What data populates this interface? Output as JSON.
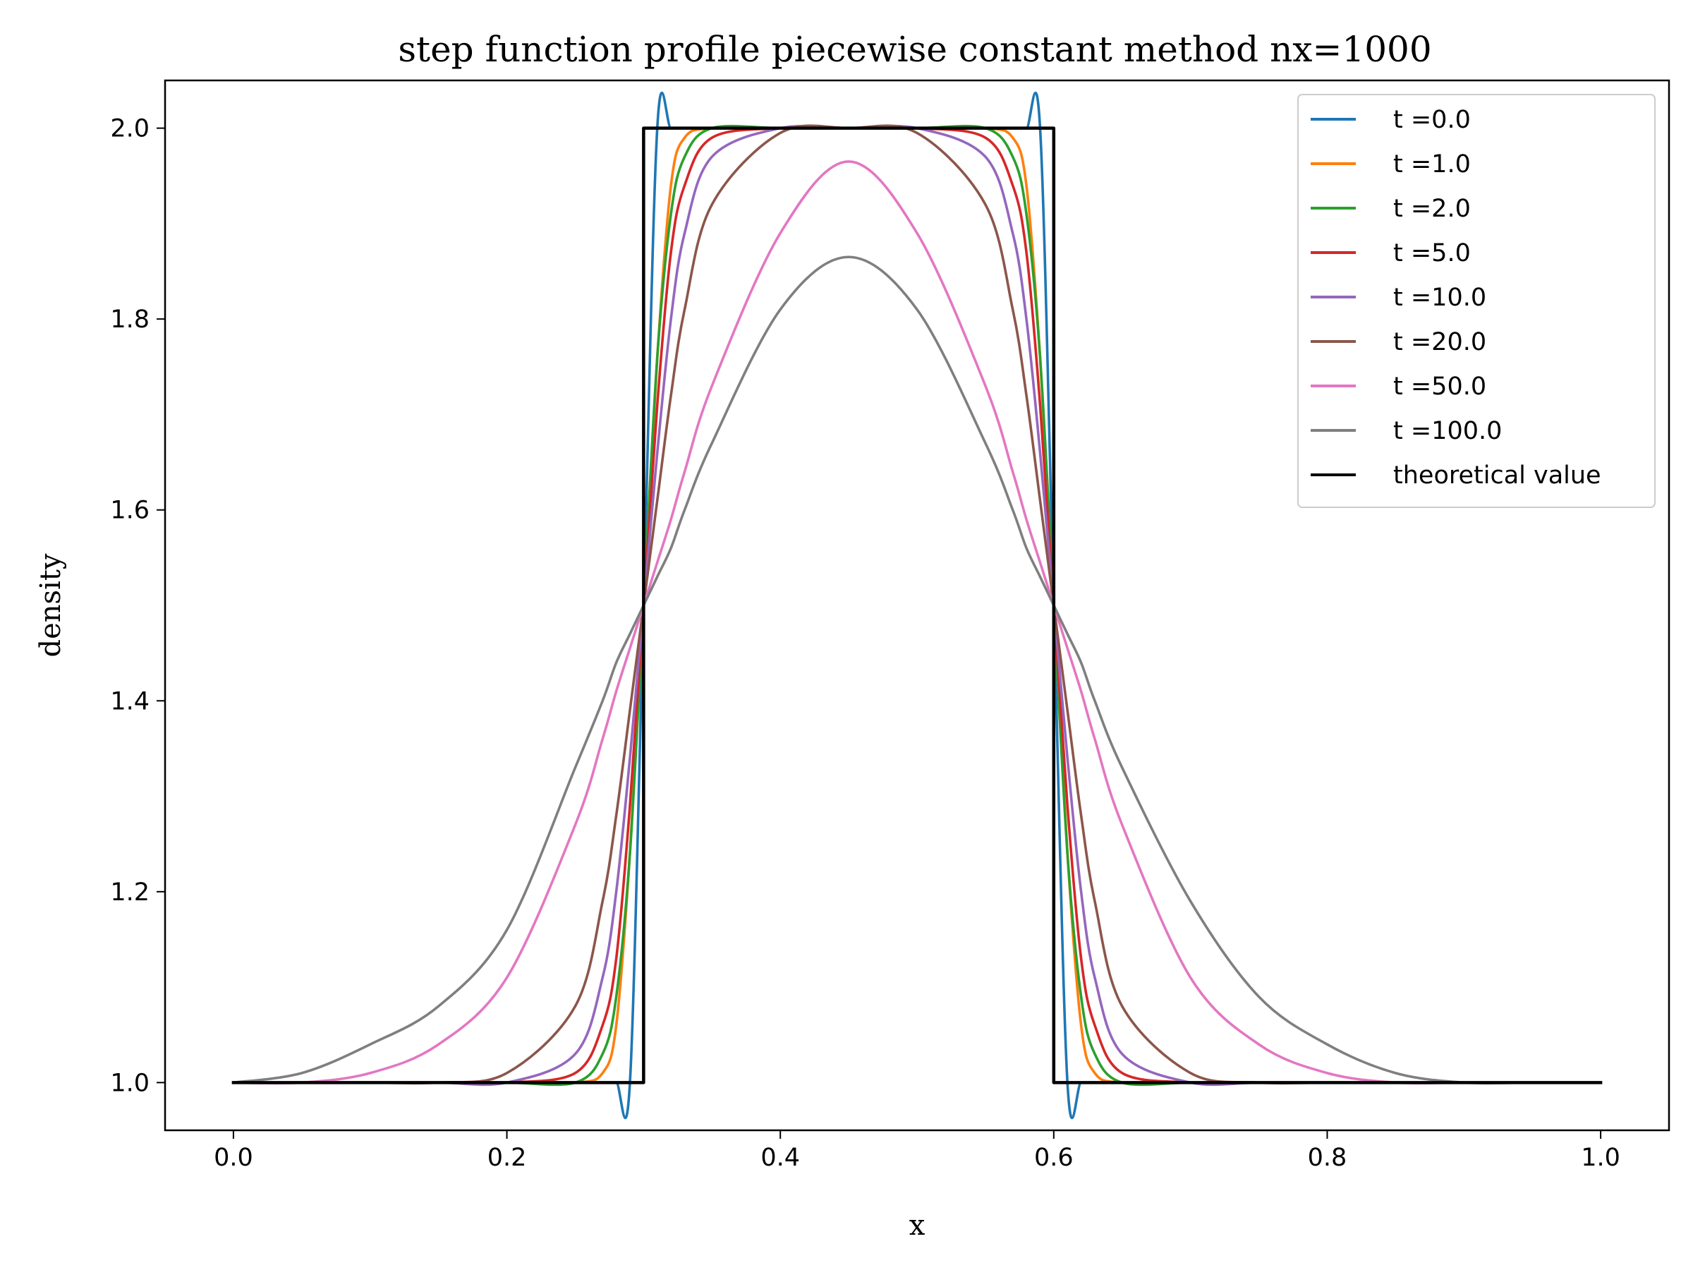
{
  "chart_data": {
    "type": "line",
    "title": "step function profile piecewise constant method nx=1000",
    "xlabel": "x",
    "ylabel": "density",
    "xlim": [
      -0.05,
      1.05
    ],
    "ylim": [
      0.95,
      2.05
    ],
    "xticks": [
      0.0,
      0.2,
      0.4,
      0.6,
      0.8,
      1.0
    ],
    "xtick_labels": [
      "0.0",
      "0.2",
      "0.4",
      "0.6",
      "0.8",
      "1.0"
    ],
    "yticks": [
      1.0,
      1.2,
      1.4,
      1.6,
      1.8,
      2.0
    ],
    "ytick_labels": [
      "1.0",
      "1.2",
      "1.4",
      "1.6",
      "1.8",
      "2.0"
    ],
    "grid": false,
    "legend_position": "top-right",
    "x": [
      0.0,
      0.05,
      0.1,
      0.15,
      0.2,
      0.25,
      0.27,
      0.28,
      0.29,
      0.3,
      0.31,
      0.32,
      0.33,
      0.35,
      0.4,
      0.45,
      0.5,
      0.55,
      0.57,
      0.58,
      0.59,
      0.6,
      0.61,
      0.62,
      0.63,
      0.65,
      0.7,
      0.75,
      0.8,
      0.85,
      0.9,
      0.95,
      1.0
    ],
    "series": [
      {
        "name": "t =0.0",
        "color": "#1f77b4",
        "values": [
          1.0,
          1.0,
          1.0,
          1.0,
          1.0,
          1.0,
          1.0,
          1.0,
          1.0,
          1.5,
          2.0,
          2.0,
          2.0,
          2.0,
          2.0,
          2.0,
          2.0,
          2.0,
          2.0,
          2.0,
          2.0,
          1.5,
          1.0,
          1.0,
          1.0,
          1.0,
          1.0,
          1.0,
          1.0,
          1.0,
          1.0,
          1.0,
          1.0
        ]
      },
      {
        "name": "t =1.0",
        "color": "#ff7f0e",
        "values": [
          1.0,
          1.0,
          1.0,
          1.0,
          1.0,
          1.0,
          1.01,
          1.06,
          1.24,
          1.5,
          1.76,
          1.94,
          1.99,
          2.0,
          2.0,
          2.0,
          2.0,
          2.0,
          1.99,
          1.94,
          1.76,
          1.5,
          1.24,
          1.06,
          1.01,
          1.0,
          1.0,
          1.0,
          1.0,
          1.0,
          1.0,
          1.0,
          1.0
        ]
      },
      {
        "name": "t =2.0",
        "color": "#2ca02c",
        "values": [
          1.0,
          1.0,
          1.0,
          1.0,
          1.0,
          1.0,
          1.03,
          1.09,
          1.24,
          1.5,
          1.76,
          1.91,
          1.97,
          2.0,
          2.0,
          2.0,
          2.0,
          2.0,
          1.97,
          1.91,
          1.76,
          1.5,
          1.24,
          1.09,
          1.03,
          1.0,
          1.0,
          1.0,
          1.0,
          1.0,
          1.0,
          1.0,
          1.0
        ]
      },
      {
        "name": "t =5.0",
        "color": "#d62728",
        "values": [
          1.0,
          1.0,
          1.0,
          1.0,
          1.0,
          1.01,
          1.06,
          1.13,
          1.29,
          1.5,
          1.71,
          1.87,
          1.94,
          1.99,
          2.0,
          2.0,
          2.0,
          1.99,
          1.94,
          1.87,
          1.71,
          1.5,
          1.29,
          1.13,
          1.06,
          1.01,
          1.0,
          1.0,
          1.0,
          1.0,
          1.0,
          1.0,
          1.0
        ]
      },
      {
        "name": "t =10.0",
        "color": "#9467bd",
        "values": [
          1.0,
          1.0,
          1.0,
          1.0,
          1.0,
          1.03,
          1.11,
          1.2,
          1.34,
          1.5,
          1.66,
          1.8,
          1.89,
          1.97,
          2.0,
          2.0,
          2.0,
          1.97,
          1.89,
          1.8,
          1.66,
          1.5,
          1.34,
          1.2,
          1.11,
          1.03,
          1.0,
          1.0,
          1.0,
          1.0,
          1.0,
          1.0,
          1.0
        ]
      },
      {
        "name": "t =20.0",
        "color": "#8c564b",
        "values": [
          1.0,
          1.0,
          1.0,
          1.0,
          1.01,
          1.08,
          1.19,
          1.28,
          1.39,
          1.5,
          1.61,
          1.72,
          1.81,
          1.92,
          1.995,
          2.0,
          1.995,
          1.92,
          1.81,
          1.72,
          1.61,
          1.5,
          1.39,
          1.28,
          1.19,
          1.08,
          1.01,
          1.0,
          1.0,
          1.0,
          1.0,
          1.0,
          1.0
        ]
      },
      {
        "name": "t =50.0",
        "color": "#e377c2",
        "values": [
          1.0,
          1.0,
          1.01,
          1.04,
          1.11,
          1.27,
          1.36,
          1.41,
          1.455,
          1.5,
          1.545,
          1.59,
          1.64,
          1.73,
          1.89,
          1.965,
          1.89,
          1.73,
          1.64,
          1.59,
          1.545,
          1.5,
          1.455,
          1.41,
          1.36,
          1.27,
          1.11,
          1.04,
          1.01,
          1.0,
          1.0,
          1.0,
          1.0
        ]
      },
      {
        "name": "t =100.0",
        "color": "#7f7f7f",
        "values": [
          1.0,
          1.01,
          1.04,
          1.08,
          1.16,
          1.33,
          1.4,
          1.44,
          1.47,
          1.5,
          1.53,
          1.56,
          1.6,
          1.67,
          1.81,
          1.865,
          1.81,
          1.67,
          1.6,
          1.56,
          1.53,
          1.5,
          1.47,
          1.44,
          1.4,
          1.33,
          1.19,
          1.09,
          1.04,
          1.01,
          1.0,
          1.0,
          1.0
        ]
      },
      {
        "name": "theoretical value",
        "color": "#000000",
        "step": true,
        "x": [
          0.0,
          0.3,
          0.3,
          0.6,
          0.6,
          1.0
        ],
        "values": [
          1.0,
          1.0,
          2.0,
          2.0,
          1.0,
          1.0
        ]
      }
    ]
  }
}
